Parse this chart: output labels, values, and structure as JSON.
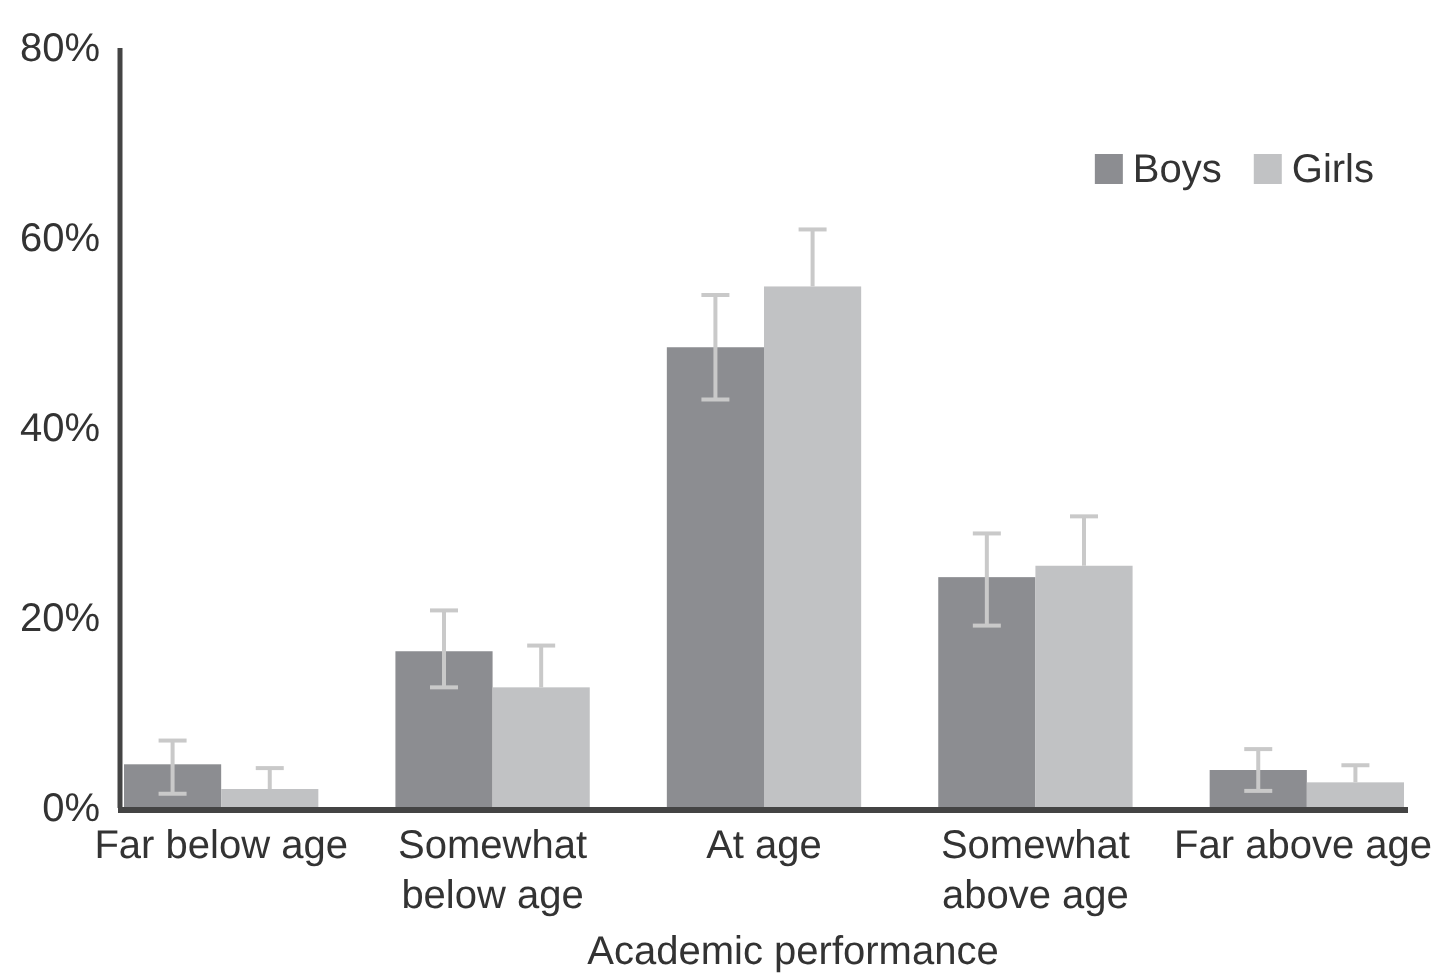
{
  "chart_data": {
    "type": "bar",
    "xlabel": "Academic performance",
    "categories": [
      "Far below age",
      "Somewhat below age",
      "At age",
      "Somewhat above age",
      "Far above age"
    ],
    "series": [
      {
        "name": "Boys",
        "color": "#8c8d91",
        "values": [
          4.6,
          16.5,
          48.5,
          24.3,
          4.0
        ],
        "errors": [
          [
            1.5,
            7.1
          ],
          [
            12.7,
            20.8
          ],
          [
            43.0,
            54.0
          ],
          [
            19.2,
            28.9
          ],
          [
            1.8,
            6.2
          ]
        ]
      },
      {
        "name": "Girls",
        "color": "#c1c2c4",
        "values": [
          2.0,
          12.7,
          54.9,
          25.5,
          2.7
        ],
        "errors": [
          [
            2.0,
            4.2
          ],
          [
            12.7,
            17.1
          ],
          [
            54.9,
            60.9
          ],
          [
            25.5,
            30.7
          ],
          [
            2.7,
            4.5
          ]
        ]
      }
    ],
    "ylim": [
      0,
      80
    ],
    "yticks": [
      {
        "value": 0,
        "label": "0%"
      },
      {
        "value": 20,
        "label": "20%"
      },
      {
        "value": 40,
        "label": "40%"
      },
      {
        "value": 60,
        "label": "60%"
      },
      {
        "value": 80,
        "label": "80%"
      }
    ],
    "grid": false,
    "legend": "top right"
  }
}
